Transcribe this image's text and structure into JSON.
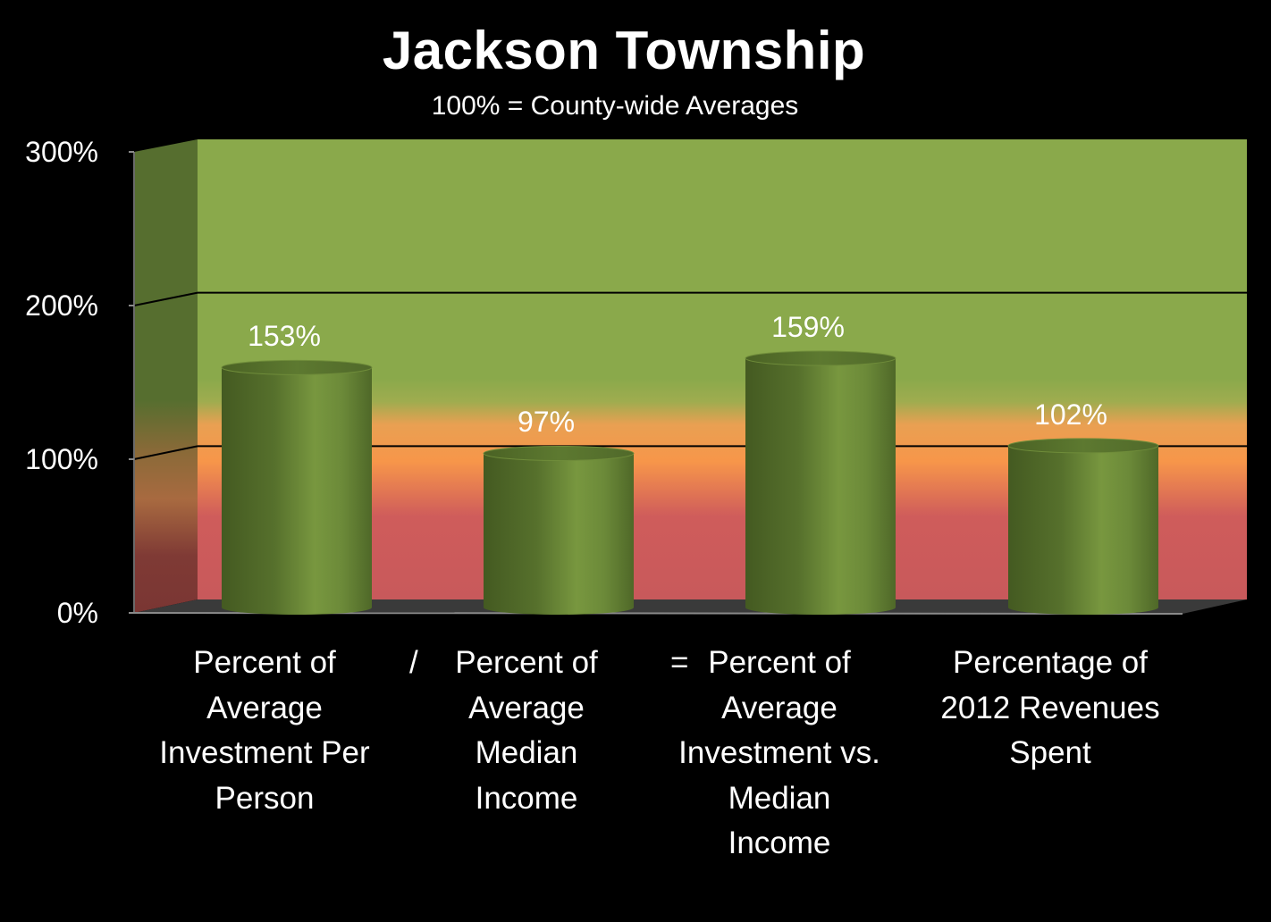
{
  "chart_data": {
    "type": "bar",
    "title": "Jackson Township",
    "subtitle": "100% = County-wide Averages",
    "categories": [
      "Percent of\nAverage\nInvestment Per\nPerson",
      "Percent of\nAverage\nMedian\nIncome",
      "Percent of\nAverage\nInvestment vs.\nMedian\nIncome",
      "Percentage of\n2012 Revenues\nSpent"
    ],
    "values": [
      153,
      97,
      159,
      102
    ],
    "data_labels": [
      "153%",
      "97%",
      "159%",
      "102%"
    ],
    "operators": [
      "/",
      "="
    ],
    "ylim": [
      0,
      300
    ],
    "yticks": [
      0,
      100,
      200,
      300
    ],
    "ytick_labels": [
      "0%",
      "100%",
      "200%",
      "300%"
    ],
    "xlabel": "",
    "ylabel": "",
    "grid": true,
    "legend": "none",
    "bar_style": "3d-cylinder",
    "colors": {
      "bar": "#5f7a32",
      "bar_light": "#7a9a44",
      "bar_dark": "#465c22",
      "background_top": "#8aa94b",
      "background_mid": "#f7964a",
      "background_bottom": "#c8595b",
      "side_wall": "#566e2f",
      "floor": "#3a3a3a",
      "text": "#ffffff"
    }
  }
}
